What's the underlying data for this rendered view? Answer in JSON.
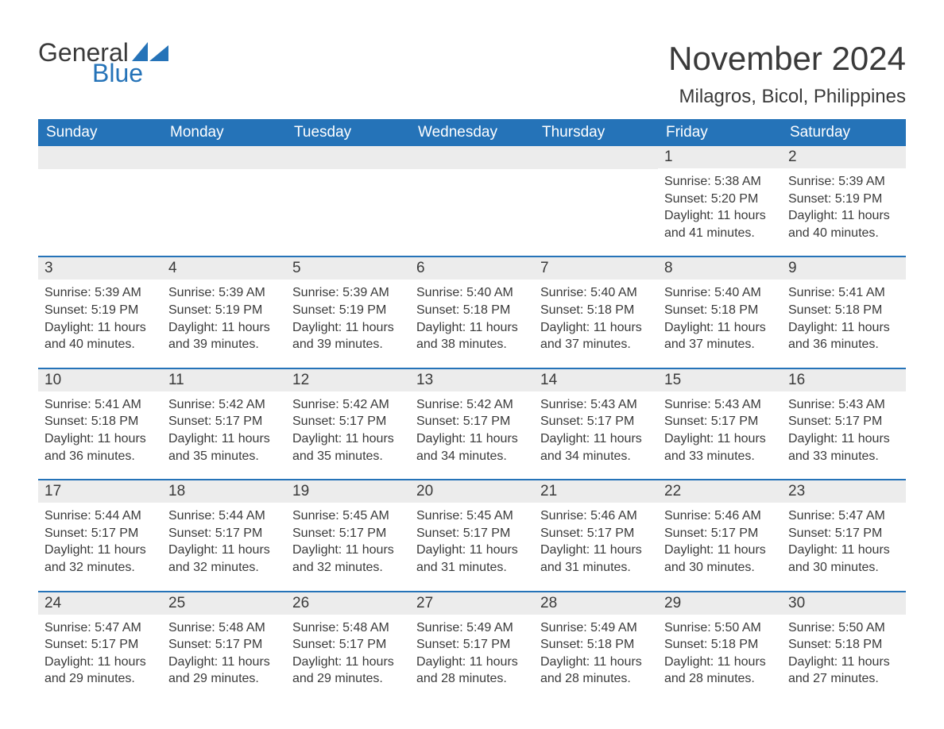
{
  "logo": {
    "general": "General",
    "blue": "Blue"
  },
  "title": "November 2024",
  "location": "Milagros, Bicol, Philippines",
  "colors": {
    "header_bg": "#2573b8",
    "header_fg": "#ffffff",
    "week_border": "#2573b8",
    "daynum_bg": "#ececec",
    "text": "#3a3a3a",
    "background": "#ffffff"
  },
  "typography": {
    "title_fontsize": 42,
    "location_fontsize": 24,
    "dow_fontsize": 19,
    "daynum_fontsize": 19,
    "body_fontsize": 16
  },
  "dow": [
    "Sunday",
    "Monday",
    "Tuesday",
    "Wednesday",
    "Thursday",
    "Friday",
    "Saturday"
  ],
  "weeks": [
    [
      null,
      null,
      null,
      null,
      null,
      {
        "n": "1",
        "sunrise": "Sunrise: 5:38 AM",
        "sunset": "Sunset: 5:20 PM",
        "daylight": "Daylight: 11 hours and 41 minutes."
      },
      {
        "n": "2",
        "sunrise": "Sunrise: 5:39 AM",
        "sunset": "Sunset: 5:19 PM",
        "daylight": "Daylight: 11 hours and 40 minutes."
      }
    ],
    [
      {
        "n": "3",
        "sunrise": "Sunrise: 5:39 AM",
        "sunset": "Sunset: 5:19 PM",
        "daylight": "Daylight: 11 hours and 40 minutes."
      },
      {
        "n": "4",
        "sunrise": "Sunrise: 5:39 AM",
        "sunset": "Sunset: 5:19 PM",
        "daylight": "Daylight: 11 hours and 39 minutes."
      },
      {
        "n": "5",
        "sunrise": "Sunrise: 5:39 AM",
        "sunset": "Sunset: 5:19 PM",
        "daylight": "Daylight: 11 hours and 39 minutes."
      },
      {
        "n": "6",
        "sunrise": "Sunrise: 5:40 AM",
        "sunset": "Sunset: 5:18 PM",
        "daylight": "Daylight: 11 hours and 38 minutes."
      },
      {
        "n": "7",
        "sunrise": "Sunrise: 5:40 AM",
        "sunset": "Sunset: 5:18 PM",
        "daylight": "Daylight: 11 hours and 37 minutes."
      },
      {
        "n": "8",
        "sunrise": "Sunrise: 5:40 AM",
        "sunset": "Sunset: 5:18 PM",
        "daylight": "Daylight: 11 hours and 37 minutes."
      },
      {
        "n": "9",
        "sunrise": "Sunrise: 5:41 AM",
        "sunset": "Sunset: 5:18 PM",
        "daylight": "Daylight: 11 hours and 36 minutes."
      }
    ],
    [
      {
        "n": "10",
        "sunrise": "Sunrise: 5:41 AM",
        "sunset": "Sunset: 5:18 PM",
        "daylight": "Daylight: 11 hours and 36 minutes."
      },
      {
        "n": "11",
        "sunrise": "Sunrise: 5:42 AM",
        "sunset": "Sunset: 5:17 PM",
        "daylight": "Daylight: 11 hours and 35 minutes."
      },
      {
        "n": "12",
        "sunrise": "Sunrise: 5:42 AM",
        "sunset": "Sunset: 5:17 PM",
        "daylight": "Daylight: 11 hours and 35 minutes."
      },
      {
        "n": "13",
        "sunrise": "Sunrise: 5:42 AM",
        "sunset": "Sunset: 5:17 PM",
        "daylight": "Daylight: 11 hours and 34 minutes."
      },
      {
        "n": "14",
        "sunrise": "Sunrise: 5:43 AM",
        "sunset": "Sunset: 5:17 PM",
        "daylight": "Daylight: 11 hours and 34 minutes."
      },
      {
        "n": "15",
        "sunrise": "Sunrise: 5:43 AM",
        "sunset": "Sunset: 5:17 PM",
        "daylight": "Daylight: 11 hours and 33 minutes."
      },
      {
        "n": "16",
        "sunrise": "Sunrise: 5:43 AM",
        "sunset": "Sunset: 5:17 PM",
        "daylight": "Daylight: 11 hours and 33 minutes."
      }
    ],
    [
      {
        "n": "17",
        "sunrise": "Sunrise: 5:44 AM",
        "sunset": "Sunset: 5:17 PM",
        "daylight": "Daylight: 11 hours and 32 minutes."
      },
      {
        "n": "18",
        "sunrise": "Sunrise: 5:44 AM",
        "sunset": "Sunset: 5:17 PM",
        "daylight": "Daylight: 11 hours and 32 minutes."
      },
      {
        "n": "19",
        "sunrise": "Sunrise: 5:45 AM",
        "sunset": "Sunset: 5:17 PM",
        "daylight": "Daylight: 11 hours and 32 minutes."
      },
      {
        "n": "20",
        "sunrise": "Sunrise: 5:45 AM",
        "sunset": "Sunset: 5:17 PM",
        "daylight": "Daylight: 11 hours and 31 minutes."
      },
      {
        "n": "21",
        "sunrise": "Sunrise: 5:46 AM",
        "sunset": "Sunset: 5:17 PM",
        "daylight": "Daylight: 11 hours and 31 minutes."
      },
      {
        "n": "22",
        "sunrise": "Sunrise: 5:46 AM",
        "sunset": "Sunset: 5:17 PM",
        "daylight": "Daylight: 11 hours and 30 minutes."
      },
      {
        "n": "23",
        "sunrise": "Sunrise: 5:47 AM",
        "sunset": "Sunset: 5:17 PM",
        "daylight": "Daylight: 11 hours and 30 minutes."
      }
    ],
    [
      {
        "n": "24",
        "sunrise": "Sunrise: 5:47 AM",
        "sunset": "Sunset: 5:17 PM",
        "daylight": "Daylight: 11 hours and 29 minutes."
      },
      {
        "n": "25",
        "sunrise": "Sunrise: 5:48 AM",
        "sunset": "Sunset: 5:17 PM",
        "daylight": "Daylight: 11 hours and 29 minutes."
      },
      {
        "n": "26",
        "sunrise": "Sunrise: 5:48 AM",
        "sunset": "Sunset: 5:17 PM",
        "daylight": "Daylight: 11 hours and 29 minutes."
      },
      {
        "n": "27",
        "sunrise": "Sunrise: 5:49 AM",
        "sunset": "Sunset: 5:17 PM",
        "daylight": "Daylight: 11 hours and 28 minutes."
      },
      {
        "n": "28",
        "sunrise": "Sunrise: 5:49 AM",
        "sunset": "Sunset: 5:18 PM",
        "daylight": "Daylight: 11 hours and 28 minutes."
      },
      {
        "n": "29",
        "sunrise": "Sunrise: 5:50 AM",
        "sunset": "Sunset: 5:18 PM",
        "daylight": "Daylight: 11 hours and 28 minutes."
      },
      {
        "n": "30",
        "sunrise": "Sunrise: 5:50 AM",
        "sunset": "Sunset: 5:18 PM",
        "daylight": "Daylight: 11 hours and 27 minutes."
      }
    ]
  ]
}
